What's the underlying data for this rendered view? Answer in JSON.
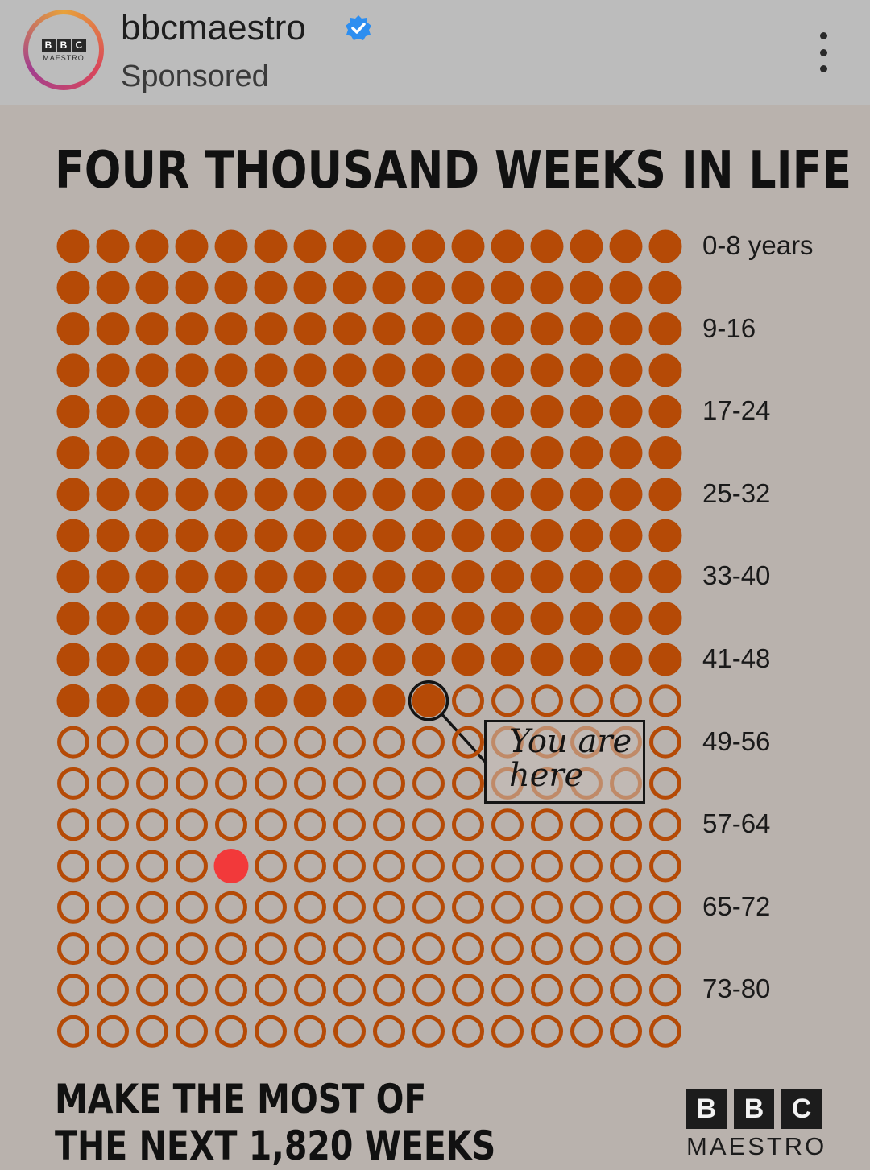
{
  "header": {
    "avatar_blocks": [
      "B",
      "B",
      "C"
    ],
    "avatar_sub": "MAESTRO",
    "username": "bbcmaestro",
    "sponsored": "Sponsored",
    "verified_icon": "verified-badge-icon",
    "more_icon": "more-vertical-icon"
  },
  "post": {
    "title": "FOUR THOUSAND WEEKS IN LIFE",
    "cta_line1": "MAKE THE MOST OF",
    "cta_line2": "THE NEXT 1,820 WEEKS",
    "callout_line1": "You are",
    "callout_line2": "here",
    "logo_blocks": [
      "B",
      "B",
      "C"
    ],
    "logo_sub": "MAESTRO"
  },
  "chart_data": {
    "type": "dot-grid",
    "title": "FOUR THOUSAND WEEKS IN LIFE",
    "columns": 16,
    "rows": 20,
    "filled_count": 186,
    "current_index": 185,
    "highlight_row": 15,
    "highlight_col": 4,
    "row_labels": [
      {
        "row": 0,
        "label": "0-8 years"
      },
      {
        "row": 2,
        "label": "9-16"
      },
      {
        "row": 4,
        "label": "17-24"
      },
      {
        "row": 6,
        "label": "25-32"
      },
      {
        "row": 8,
        "label": "33-40"
      },
      {
        "row": 10,
        "label": "41-48"
      },
      {
        "row": 12,
        "label": "49-56"
      },
      {
        "row": 14,
        "label": "57-64"
      },
      {
        "row": 16,
        "label": "65-72"
      },
      {
        "row": 18,
        "label": "73-80"
      }
    ],
    "colors": {
      "filled": "#b54a06",
      "empty_stroke": "#b54a06",
      "highlight": "#f2393a",
      "current_ring": "#141414"
    }
  }
}
